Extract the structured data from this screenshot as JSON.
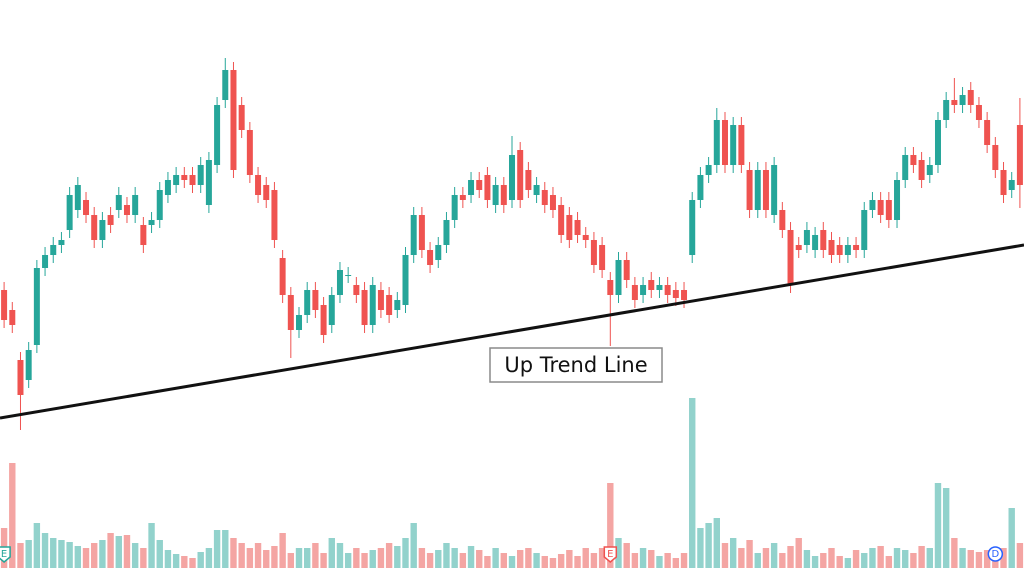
{
  "chart_data": {
    "type": "candlestick",
    "up_color": "#26a69a",
    "down_color": "#ef5350",
    "volume_up_color": "#92d2cc",
    "volume_down_color": "#f4a5a3",
    "xlim": [
      -0.5,
      124.5
    ],
    "ylim": [
      0,
      568
    ],
    "volume_lim": [
      0,
      170
    ],
    "open": [
      278,
      258,
      208,
      188,
      223,
      300,
      313,
      323,
      338,
      358,
      368,
      353,
      328,
      353,
      358,
      363,
      353,
      343,
      343,
      348,
      373,
      383,
      393,
      393,
      383,
      363,
      403,
      468,
      498,
      463,
      438,
      393,
      383,
      378,
      310,
      273,
      238,
      253,
      278,
      263,
      243,
      273,
      293,
      283,
      278,
      243,
      278,
      273,
      258,
      263,
      313,
      353,
      318,
      308,
      323,
      348,
      373,
      373,
      388,
      393,
      363,
      383,
      368,
      418,
      398,
      373,
      378,
      373,
      363,
      353,
      348,
      333,
      328,
      323,
      288,
      273,
      308,
      283,
      273,
      288,
      278,
      283,
      278,
      278,
      313,
      368,
      393,
      403,
      448,
      403,
      443,
      398,
      358,
      398,
      353,
      358,
      338,
      323,
      323,
      318,
      338,
      328,
      323,
      313,
      323,
      318,
      358,
      368,
      368,
      348,
      388,
      413,
      408,
      393,
      403,
      448,
      468,
      463,
      478,
      463,
      448,
      423,
      398,
      378,
      443
    ],
    "high": [
      286,
      266,
      216,
      226,
      308,
      321,
      331,
      336,
      381,
      391,
      376,
      361,
      356,
      361,
      381,
      371,
      381,
      351,
      356,
      386,
      396,
      401,
      401,
      401,
      411,
      416,
      471,
      510,
      506,
      471,
      446,
      401,
      391,
      386,
      318,
      281,
      261,
      286,
      286,
      271,
      281,
      306,
      301,
      291,
      286,
      291,
      286,
      281,
      276,
      321,
      361,
      361,
      326,
      331,
      356,
      381,
      381,
      396,
      396,
      401,
      391,
      391,
      432,
      426,
      406,
      391,
      386,
      381,
      371,
      361,
      356,
      341,
      336,
      331,
      296,
      316,
      316,
      291,
      291,
      296,
      291,
      291,
      286,
      286,
      376,
      401,
      411,
      460,
      456,
      451,
      451,
      406,
      406,
      406,
      411,
      366,
      346,
      331,
      346,
      341,
      346,
      336,
      331,
      331,
      331,
      366,
      376,
      376,
      376,
      396,
      421,
      421,
      416,
      411,
      456,
      476,
      490,
      481,
      486,
      471,
      456,
      431,
      406,
      396,
      470
    ],
    "low": [
      240,
      235,
      138,
      180,
      215,
      292,
      305,
      315,
      330,
      350,
      345,
      320,
      320,
      335,
      350,
      345,
      345,
      315,
      335,
      340,
      365,
      375,
      380,
      375,
      375,
      355,
      395,
      460,
      390,
      430,
      385,
      365,
      360,
      320,
      265,
      210,
      230,
      245,
      250,
      225,
      235,
      265,
      285,
      265,
      235,
      235,
      250,
      245,
      250,
      255,
      305,
      310,
      295,
      300,
      315,
      340,
      360,
      365,
      370,
      360,
      355,
      355,
      360,
      360,
      370,
      365,
      355,
      350,
      325,
      320,
      325,
      320,
      295,
      290,
      222,
      265,
      280,
      260,
      265,
      270,
      270,
      265,
      262,
      260,
      305,
      360,
      385,
      395,
      395,
      395,
      395,
      350,
      350,
      350,
      345,
      330,
      275,
      310,
      315,
      310,
      310,
      305,
      305,
      305,
      310,
      310,
      350,
      345,
      340,
      340,
      380,
      395,
      380,
      385,
      395,
      440,
      455,
      455,
      455,
      440,
      415,
      390,
      365,
      370,
      360
    ],
    "close": [
      248,
      243,
      173,
      218,
      300,
      313,
      323,
      328,
      373,
      383,
      353,
      328,
      348,
      343,
      373,
      353,
      373,
      323,
      348,
      378,
      388,
      393,
      388,
      383,
      403,
      408,
      463,
      498,
      398,
      438,
      393,
      373,
      368,
      328,
      273,
      238,
      253,
      278,
      258,
      233,
      273,
      298,
      293,
      273,
      243,
      283,
      258,
      253,
      268,
      313,
      353,
      318,
      303,
      323,
      348,
      373,
      368,
      388,
      378,
      368,
      383,
      363,
      413,
      368,
      378,
      383,
      363,
      358,
      333,
      328,
      333,
      328,
      303,
      298,
      273,
      308,
      288,
      268,
      283,
      278,
      283,
      273,
      270,
      268,
      368,
      393,
      403,
      448,
      403,
      443,
      403,
      358,
      398,
      358,
      403,
      338,
      283,
      318,
      338,
      333,
      318,
      313,
      313,
      323,
      318,
      358,
      368,
      353,
      348,
      388,
      413,
      403,
      388,
      403,
      448,
      468,
      463,
      473,
      463,
      448,
      423,
      398,
      373,
      388,
      383
    ],
    "volume": [
      40,
      105,
      25,
      28,
      45,
      35,
      30,
      28,
      26,
      22,
      20,
      25,
      28,
      35,
      32,
      33,
      25,
      20,
      45,
      28,
      18,
      14,
      12,
      10,
      16,
      20,
      38,
      38,
      30,
      25,
      20,
      25,
      18,
      22,
      35,
      15,
      20,
      20,
      25,
      15,
      30,
      25,
      15,
      20,
      15,
      18,
      20,
      25,
      22,
      30,
      45,
      20,
      15,
      18,
      25,
      20,
      15,
      22,
      18,
      12,
      20,
      15,
      12,
      18,
      20,
      15,
      12,
      10,
      14,
      18,
      12,
      20,
      15,
      20,
      85,
      30,
      25,
      15,
      20,
      18,
      12,
      15,
      10,
      15,
      170,
      40,
      45,
      50,
      25,
      30,
      20,
      28,
      15,
      20,
      25,
      15,
      22,
      30,
      18,
      12,
      15,
      20,
      12,
      10,
      18,
      15,
      20,
      22,
      12,
      20,
      18,
      15,
      22,
      20,
      85,
      80,
      30,
      20,
      18,
      16,
      18,
      15,
      20,
      60,
      25
    ],
    "trend_line": {
      "label": "Up Trend Line",
      "x": [
        -0.5,
        124.5
      ],
      "y": [
        150,
        323
      ]
    },
    "events": [
      {
        "index": 0,
        "label": "E"
      },
      {
        "index": 74,
        "label": "E"
      },
      {
        "index": 121,
        "label": "D"
      }
    ]
  }
}
